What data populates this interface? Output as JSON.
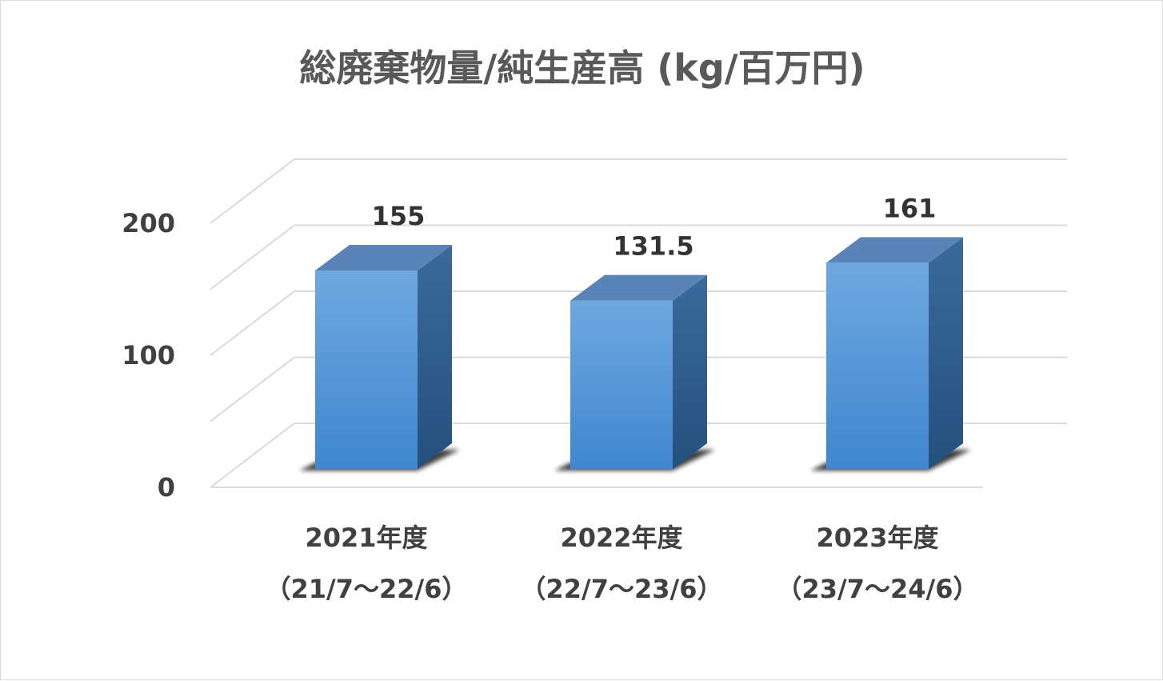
{
  "chart_data": {
    "type": "bar",
    "title": "総廃棄物量/純生産高 (kg/百万円)",
    "categories": [
      [
        "2021年度",
        "（21/7～22/6）"
      ],
      [
        "2022年度",
        "（22/7～23/6）"
      ],
      [
        "2023年度",
        "（23/7～24/6）"
      ]
    ],
    "values": [
      155,
      131.5,
      161
    ],
    "data_labels": [
      "155",
      "131.5",
      "161"
    ],
    "y_ticks": [
      "0",
      "100",
      "200"
    ],
    "ylim": [
      0,
      200
    ],
    "grid": true,
    "legend": "none",
    "style": "3d-column",
    "colors": {
      "bar_front_top": "#6fa8e0",
      "bar_front_bottom": "#3f87cf",
      "bar_side": "#2f5f91",
      "bar_top": "#5a84b8",
      "gridline": "#d9d9d9",
      "text": "#404040"
    }
  }
}
